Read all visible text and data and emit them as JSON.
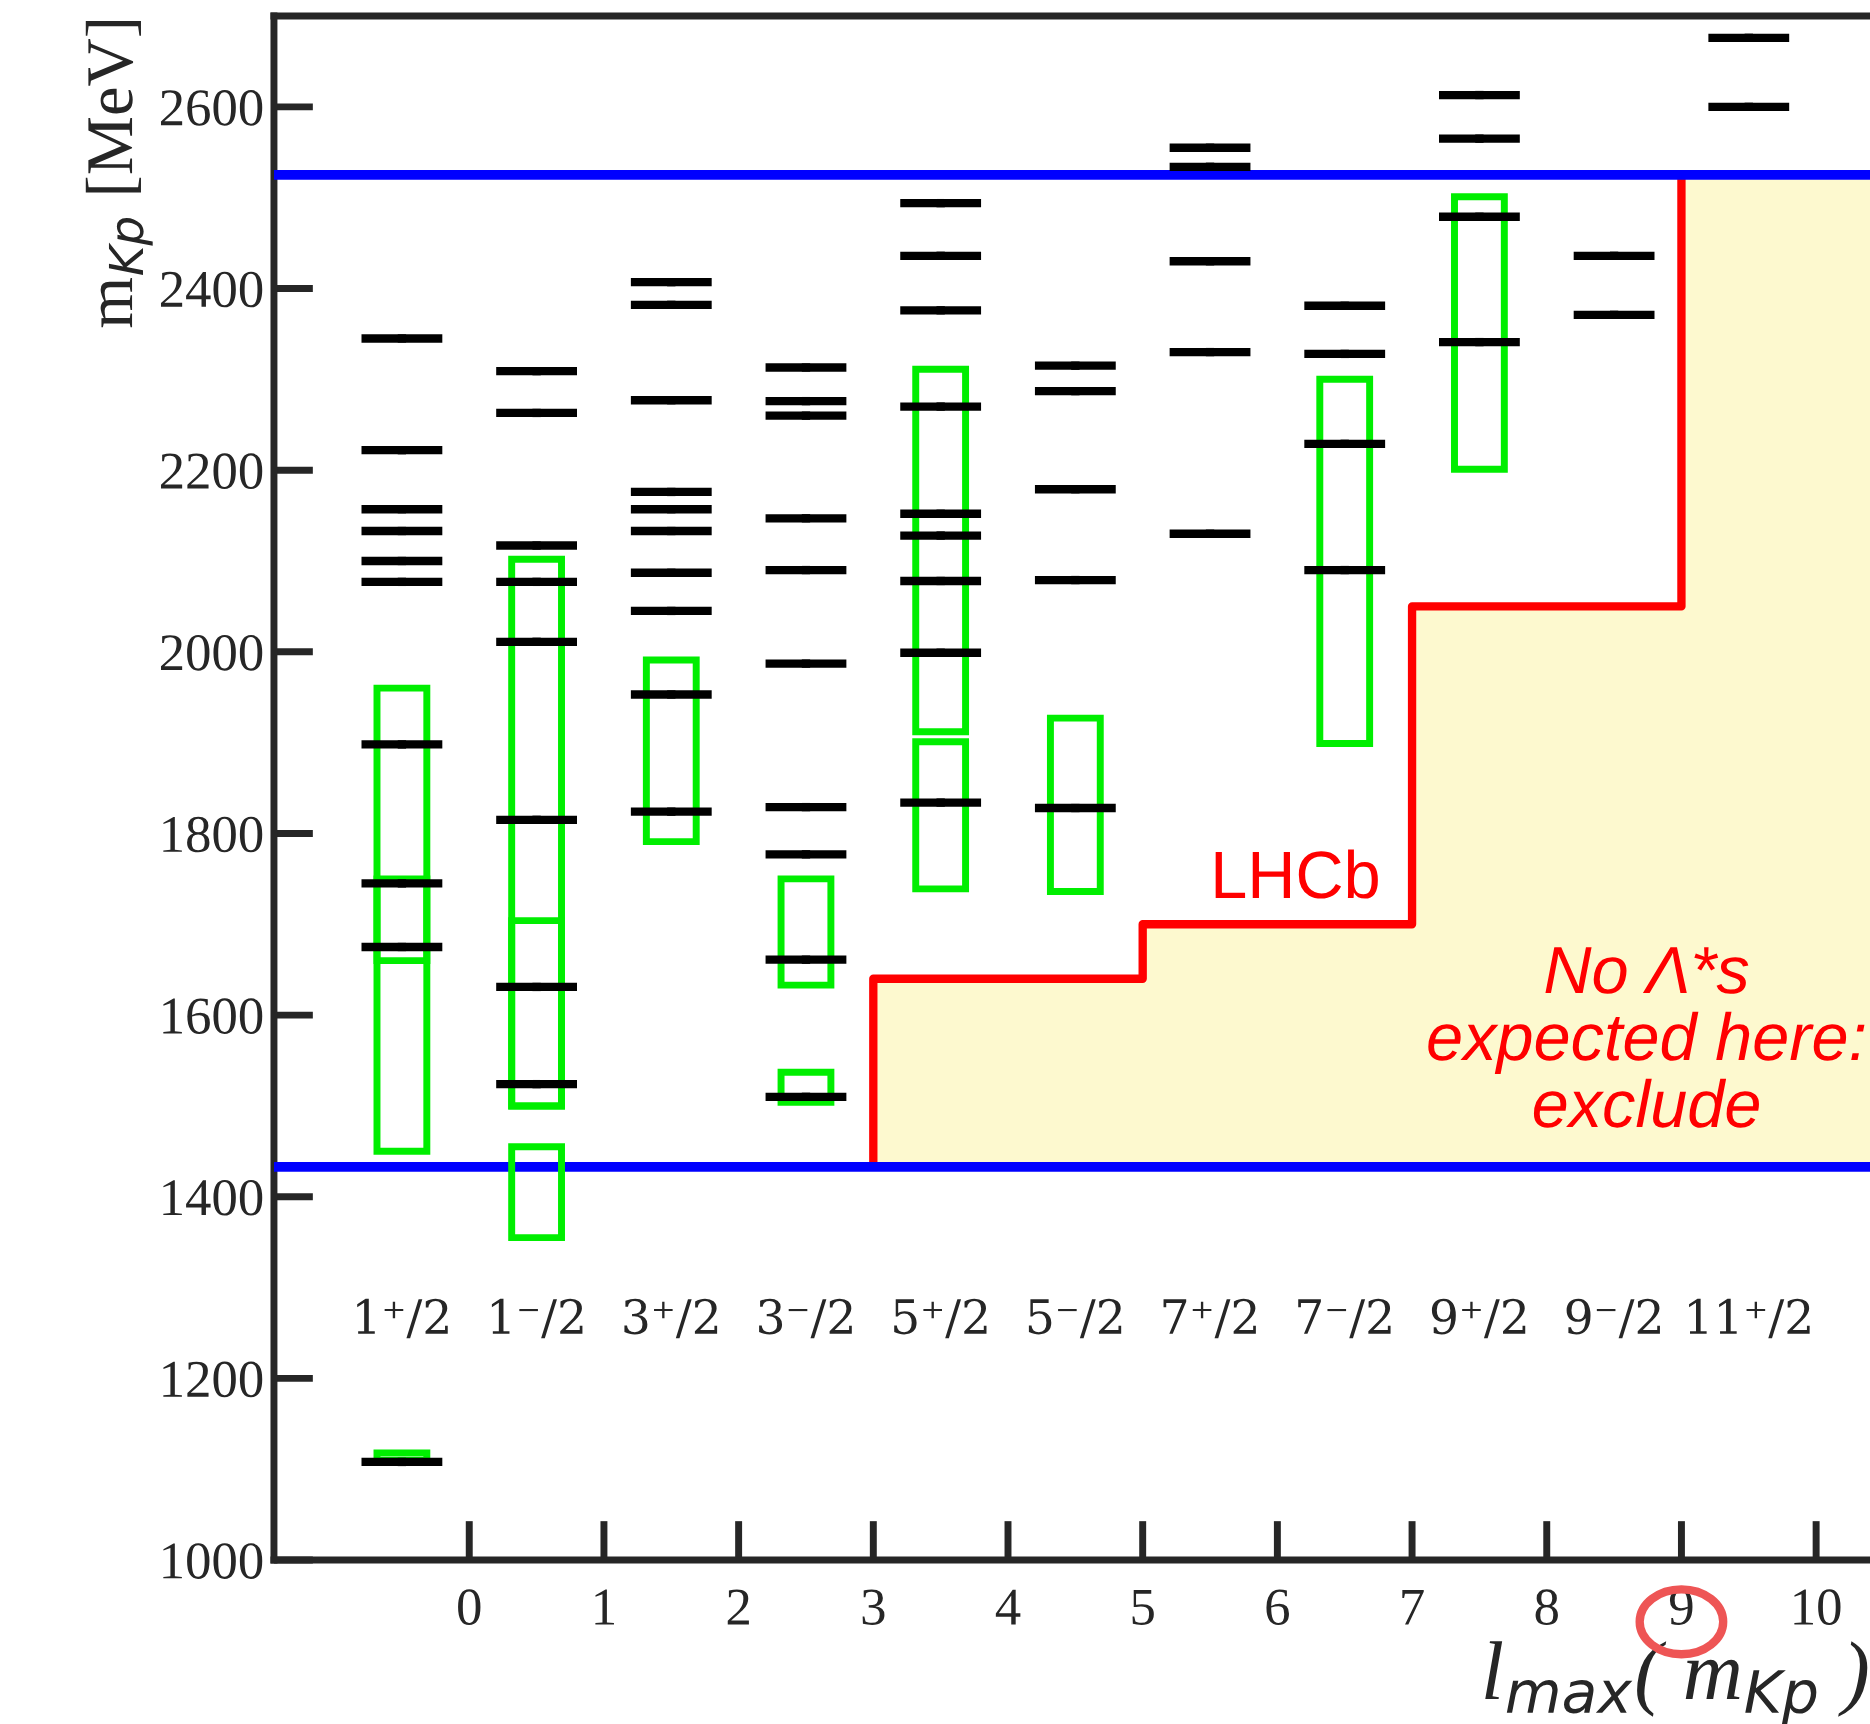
{
  "chart_data": {
    "type": "scatter",
    "xlabel": "l$_{max}$( m$_{Kp}$ )",
    "ylabel": "m$_{Kp}$ [MeV]",
    "xlim": [
      -1.45,
      10.4
    ],
    "ylim": [
      1000,
      2700
    ],
    "xticks": [
      0,
      1,
      2,
      3,
      4,
      5,
      6,
      7,
      8,
      9,
      10
    ],
    "yticks": [
      1000,
      1200,
      1400,
      1600,
      1800,
      2000,
      2200,
      2400,
      2600
    ],
    "grid": false,
    "series": [
      {
        "type": "area",
        "color": "#fdf9cf",
        "x": [
          3,
          3,
          5,
          7,
          9,
          10.4
        ],
        "values": [
          1433,
          1640,
          1700,
          2050,
          2525,
          2525
        ]
      },
      {
        "type": "step",
        "color": "#ff0000",
        "x": [
          3,
          3,
          5,
          7,
          9
        ],
        "values": [
          1433,
          1640,
          1700,
          2050,
          2525
        ]
      },
      {
        "type": "bar",
        "color": "#00ee00",
        "x": [
          -0.5,
          0.5,
          1.5,
          2.5,
          3.5,
          4.5,
          6.5,
          7.5
        ],
        "base": [
          1450,
          1500,
          1791,
          1633,
          1912,
          1736,
          1899,
          2201
        ],
        "values": [
          300,
          602,
          200,
          117,
          399,
          191,
          401,
          300
        ]
      },
      {
        "type": "bar",
        "color": "#00ee00",
        "x": [
          -0.5,
          0.5,
          2.5,
          3.5
        ],
        "base": [
          1660,
          1500,
          1504,
          1739
        ],
        "values": [
          300,
          204,
          33,
          162
        ]
      },
      {
        "type": "bar",
        "color": "#00ee00",
        "x": [
          -0.5,
          0.5
        ],
        "base": [
          1110,
          1355
        ],
        "values": [
          8,
          100
        ]
      },
      {
        "color": "#000000",
        "marker": "square",
        "x": [
          -0.5,
          -0.5,
          -0.5,
          -0.5,
          -0.5,
          -0.5,
          -0.5,
          -0.5,
          -0.5,
          -0.5,
          0.5,
          0.5,
          0.5,
          0.5,
          0.5,
          0.5,
          0.5,
          0.5,
          1.5,
          1.5,
          1.5,
          1.5,
          1.5,
          1.5,
          1.5,
          1.5,
          1.5,
          1.5,
          2.5,
          2.5,
          2.5,
          2.5,
          2.5,
          2.5,
          2.5,
          2.5,
          2.5,
          2.5,
          3.5,
          3.5,
          3.5,
          3.5,
          3.5,
          3.5,
          3.5,
          3.5,
          3.5,
          4.5,
          4.5,
          4.5,
          4.5,
          4.5,
          5.5,
          5.5,
          5.5,
          5.5,
          5.5,
          6.5,
          6.5,
          6.5,
          6.5,
          7.5,
          7.5,
          7.5,
          7.5,
          8.5,
          8.5,
          9.5,
          9.5
        ],
        "values": [
          2345,
          2222,
          2157,
          2133,
          2100,
          2077,
          1898,
          1745,
          1675,
          1108,
          2309,
          2263,
          2117,
          2077,
          2011,
          1815,
          1631,
          1524,
          2407,
          2382,
          2277,
          2176,
          2157,
          2133,
          2087,
          2045,
          1953,
          1824,
          2313,
          2276,
          2260,
          2147,
          2090,
          1987,
          1829,
          1777,
          1661,
          1510,
          2494,
          2436,
          2376,
          2270,
          2152,
          2128,
          2078,
          1999,
          1834,
          2315,
          2287,
          2179,
          2079,
          1828,
          2555,
          2534,
          2430,
          2330,
          2130,
          2381,
          2328,
          2229,
          2090,
          2613,
          2565,
          2479,
          2341,
          2436,
          2371,
          2676,
          2600
        ],
        "xerrors": [
          0.3,
          0.3,
          0.3,
          0.3,
          0.3,
          0.3,
          0.3,
          0.3,
          0.3,
          0.3,
          0.3,
          0.3,
          0.3,
          0.3,
          0.3,
          0.3,
          0.3,
          0.3,
          0.3,
          0.3,
          0.3,
          0.3,
          0.3,
          0.3,
          0.3,
          0.3,
          0.3,
          0.3,
          0.3,
          0.3,
          0.3,
          0.3,
          0.3,
          0.3,
          0.3,
          0.3,
          0.3,
          0.3,
          0.3,
          0.3,
          0.3,
          0.3,
          0.3,
          0.3,
          0.3,
          0.3,
          0.3,
          0.3,
          0.3,
          0.3,
          0.3,
          0.3,
          0.3,
          0.3,
          0.3,
          0.3,
          0.3,
          0.3,
          0.3,
          0.3,
          0.3,
          0.3,
          0.3,
          0.3,
          0.3,
          0.3,
          0.3,
          0.3,
          0.3
        ]
      }
    ],
    "ref_lines": [
      {
        "axis": "y",
        "value": 2525,
        "color": "#0000ff"
      },
      {
        "axis": "y",
        "value": 1433,
        "color": "#0000ff"
      }
    ],
    "annotations": [
      "1⁺/2",
      "1⁻/2",
      "3⁺/2",
      "3⁻/2",
      "5⁺/2",
      "5⁻/2",
      "7⁺/2",
      "7⁻/2",
      "9⁺/2",
      "9⁻/2",
      "11⁺/2",
      "LHCb",
      "No Λ*s\nexpected here:\nexclude"
    ]
  }
}
